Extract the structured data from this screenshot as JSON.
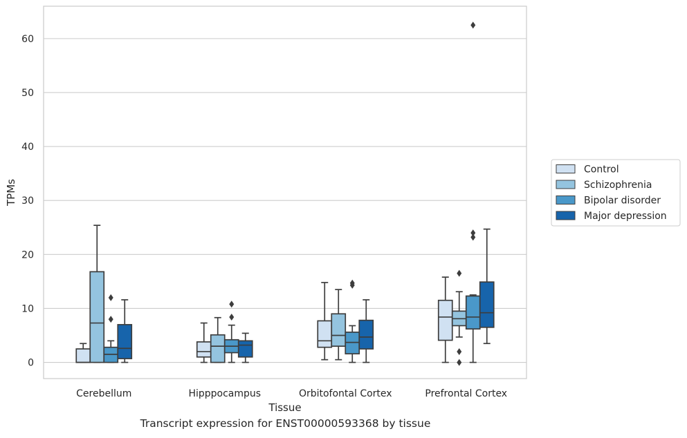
{
  "caption": "Transcript expression for ENST00000593368 by tissue",
  "chart_data": {
    "type": "boxplot",
    "xlabel": "Tissue",
    "ylabel": "TPMs",
    "ylim": [
      -3,
      66
    ],
    "yticks": [
      0,
      10,
      20,
      30,
      40,
      50,
      60
    ],
    "categories": [
      "Cerebellum",
      "Hipppocampus",
      "Orbitofontal Cortex",
      "Prefrontal Cortex"
    ],
    "legend_position": "right",
    "grid": true,
    "series": [
      {
        "name": "Control",
        "color": "#d0e1f2",
        "boxes": [
          {
            "whislo": 0,
            "q1": 0,
            "med": 0,
            "q3": 2.5,
            "whishi": 3.5,
            "fliers": []
          },
          {
            "whislo": 0,
            "q1": 1,
            "med": 2,
            "q3": 3.8,
            "whishi": 7.3,
            "fliers": []
          },
          {
            "whislo": 0.5,
            "q1": 2.8,
            "med": 4,
            "q3": 7.7,
            "whishi": 14.8,
            "fliers": []
          },
          {
            "whislo": 0,
            "q1": 4.1,
            "med": 8.4,
            "q3": 11.5,
            "whishi": 15.8,
            "fliers": []
          }
        ]
      },
      {
        "name": "Schizophrenia",
        "color": "#94c4df",
        "boxes": [
          {
            "whislo": 0,
            "q1": 0,
            "med": 7.3,
            "q3": 16.8,
            "whishi": 25.4,
            "fliers": []
          },
          {
            "whislo": 0,
            "q1": 0,
            "med": 3,
            "q3": 5.1,
            "whishi": 8.3,
            "fliers": []
          },
          {
            "whislo": 0.5,
            "q1": 3,
            "med": 5,
            "q3": 9,
            "whishi": 13.5,
            "fliers": []
          },
          {
            "whislo": 4.7,
            "q1": 6.8,
            "med": 8.1,
            "q3": 9.5,
            "whishi": 13.1,
            "fliers": [
              16.5,
              2,
              0
            ]
          }
        ]
      },
      {
        "name": "Bipolar disorder",
        "color": "#4a98c9",
        "boxes": [
          {
            "whislo": 0,
            "q1": 0,
            "med": 1.5,
            "q3": 2.8,
            "whishi": 4,
            "fliers": [
              12,
              8
            ]
          },
          {
            "whislo": 0,
            "q1": 1.8,
            "med": 3,
            "q3": 4.2,
            "whishi": 6.9,
            "fliers": [
              10.8,
              8.4
            ]
          },
          {
            "whislo": 0,
            "q1": 1.6,
            "med": 3.7,
            "q3": 5.6,
            "whishi": 6.8,
            "fliers": [
              14.7,
              14.3
            ]
          },
          {
            "whislo": 0,
            "q1": 6.2,
            "med": 8.4,
            "q3": 12.3,
            "whishi": 12.5,
            "fliers": [
              62.5,
              24,
              23.2
            ]
          }
        ]
      },
      {
        "name": "Major depression",
        "color": "#1764ab",
        "boxes": [
          {
            "whislo": 0,
            "q1": 0.7,
            "med": 2.6,
            "q3": 7,
            "whishi": 11.6,
            "fliers": []
          },
          {
            "whislo": 0,
            "q1": 1,
            "med": 3.2,
            "q3": 4,
            "whishi": 5.4,
            "fliers": []
          },
          {
            "whislo": 0,
            "q1": 2.5,
            "med": 4.7,
            "q3": 7.8,
            "whishi": 11.6,
            "fliers": []
          },
          {
            "whislo": 3.5,
            "q1": 6.5,
            "med": 9.2,
            "q3": 14.9,
            "whishi": 24.7,
            "fliers": []
          }
        ]
      }
    ]
  }
}
